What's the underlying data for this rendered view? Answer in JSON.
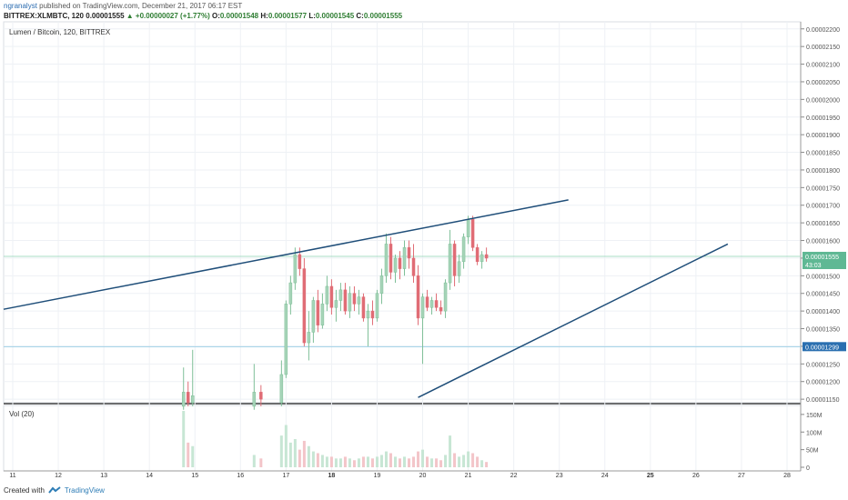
{
  "header": {
    "user": "ngranalyst",
    "published": "published on TradingView.com, December 21, 2017 06:17 EST",
    "symbol": "BITTREX:XLMBTC, 120",
    "last": "0.00001555",
    "change": "▲ +0.00000027 (+1.77%)",
    "o_label": "O:",
    "o": "0.00001548",
    "h_label": "H:",
    "h": "0.00001577",
    "l_label": "L:",
    "l": "0.00001545",
    "c_label": "C:",
    "c": "0.00001555"
  },
  "pane_title": "Lumen / Bitcoin, 120, BITTREX",
  "volume_title": "Vol (20)",
  "footer": {
    "created": "Created with",
    "brand": "TradingView"
  },
  "colors": {
    "up": "#a6d4b8",
    "up_line": "#7fbf98",
    "down": "#e06c75",
    "trend": "#1f4e79",
    "grid": "#eef1f5",
    "hline": "#9fd0e6"
  },
  "chart_data": {
    "type": "candlestick",
    "price_ticks": [
      "0.00001150",
      "0.00001200",
      "0.00001250",
      "0.00001300",
      "0.00001350",
      "0.00001400",
      "0.00001450",
      "0.00001500",
      "0.00001550",
      "0.00001600",
      "0.00001650",
      "0.00001700",
      "0.00001750",
      "0.00001800",
      "0.00001850",
      "0.00001900",
      "0.00001950",
      "0.00002000",
      "0.00002050",
      "0.00002100",
      "0.00002150",
      "0.00002200"
    ],
    "price_range": [
      1.14e-05,
      2.22e-05
    ],
    "last_price_label": "0.00001555",
    "countdown_label": "43:03",
    "marked_level_label": "0.00001299",
    "marked_level": 1.299e-05,
    "last_price": 1.555e-05,
    "x_labels": [
      "11",
      "12",
      "13",
      "14",
      "15",
      "16",
      "17",
      "18",
      "19",
      "20",
      "21",
      "22",
      "23",
      "24",
      "25",
      "26",
      "27",
      "28"
    ],
    "bold_x_labels": [
      "18",
      "25"
    ],
    "day_range": [
      10.8,
      28.3
    ],
    "volume_ticks": [
      "0",
      "50M",
      "100M",
      "150M"
    ],
    "volume_range": [
      0,
      160
    ],
    "trendlines": [
      {
        "p1": [
          10.8,
          1.405e-05
        ],
        "p2": [
          23.2,
          1.715e-05
        ]
      },
      {
        "p1": [
          19.9,
          1.155e-05
        ],
        "p2": [
          26.7,
          1.59e-05
        ]
      }
    ],
    "candles": [
      {
        "t": 14.75,
        "o": 1.13e-05,
        "h": 1.24e-05,
        "l": 1.12e-05,
        "c": 1.17e-05,
        "v": 160
      },
      {
        "t": 14.85,
        "o": 1.17e-05,
        "h": 1.2e-05,
        "l": 1.13e-05,
        "c": 1.14e-05,
        "v": 70
      },
      {
        "t": 14.95,
        "o": 1.14e-05,
        "h": 1.29e-05,
        "l": 1.13e-05,
        "c": 1.16e-05,
        "v": 60
      },
      {
        "t": 16.3,
        "o": 1.13e-05,
        "h": 1.25e-05,
        "l": 1.12e-05,
        "c": 1.17e-05,
        "v": 35
      },
      {
        "t": 16.45,
        "o": 1.17e-05,
        "h": 1.19e-05,
        "l": 1.13e-05,
        "c": 1.15e-05,
        "v": 25
      },
      {
        "t": 16.9,
        "o": 1.14e-05,
        "h": 1.26e-05,
        "l": 1.13e-05,
        "c": 1.22e-05,
        "v": 90
      },
      {
        "t": 17.0,
        "o": 1.22e-05,
        "h": 1.43e-05,
        "l": 1.21e-05,
        "c": 1.42e-05,
        "v": 120
      },
      {
        "t": 17.1,
        "o": 1.42e-05,
        "h": 1.5e-05,
        "l": 1.39e-05,
        "c": 1.48e-05,
        "v": 70
      },
      {
        "t": 17.2,
        "o": 1.48e-05,
        "h": 1.58e-05,
        "l": 1.46e-05,
        "c": 1.56e-05,
        "v": 80
      },
      {
        "t": 17.3,
        "o": 1.56e-05,
        "h": 1.58e-05,
        "l": 1.5e-05,
        "c": 1.52e-05,
        "v": 50
      },
      {
        "t": 17.4,
        "o": 1.52e-05,
        "h": 1.55e-05,
        "l": 1.3e-05,
        "c": 1.31e-05,
        "v": 75
      },
      {
        "t": 17.5,
        "o": 1.31e-05,
        "h": 1.4e-05,
        "l": 1.26e-05,
        "c": 1.34e-05,
        "v": 60
      },
      {
        "t": 17.6,
        "o": 1.34e-05,
        "h": 1.44e-05,
        "l": 1.31e-05,
        "c": 1.43e-05,
        "v": 45
      },
      {
        "t": 17.7,
        "o": 1.43e-05,
        "h": 1.46e-05,
        "l": 1.34e-05,
        "c": 1.36e-05,
        "v": 40
      },
      {
        "t": 17.8,
        "o": 1.36e-05,
        "h": 1.45e-05,
        "l": 1.35e-05,
        "c": 1.42e-05,
        "v": 35
      },
      {
        "t": 17.9,
        "o": 1.42e-05,
        "h": 1.5e-05,
        "l": 1.4e-05,
        "c": 1.47e-05,
        "v": 30
      },
      {
        "t": 18.0,
        "o": 1.47e-05,
        "h": 1.49e-05,
        "l": 1.39e-05,
        "c": 1.41e-05,
        "v": 30
      },
      {
        "t": 18.1,
        "o": 1.41e-05,
        "h": 1.46e-05,
        "l": 1.37e-05,
        "c": 1.43e-05,
        "v": 25
      },
      {
        "t": 18.2,
        "o": 1.43e-05,
        "h": 1.48e-05,
        "l": 1.4e-05,
        "c": 1.46e-05,
        "v": 25
      },
      {
        "t": 18.3,
        "o": 1.46e-05,
        "h": 1.48e-05,
        "l": 1.39e-05,
        "c": 1.4e-05,
        "v": 30
      },
      {
        "t": 18.4,
        "o": 1.4e-05,
        "h": 1.47e-05,
        "l": 1.38e-05,
        "c": 1.45e-05,
        "v": 25
      },
      {
        "t": 18.5,
        "o": 1.45e-05,
        "h": 1.47e-05,
        "l": 1.4e-05,
        "c": 1.42e-05,
        "v": 20
      },
      {
        "t": 18.6,
        "o": 1.42e-05,
        "h": 1.46e-05,
        "l": 1.39e-05,
        "c": 1.44e-05,
        "v": 25
      },
      {
        "t": 18.7,
        "o": 1.44e-05,
        "h": 1.45e-05,
        "l": 1.37e-05,
        "c": 1.38e-05,
        "v": 30
      },
      {
        "t": 18.8,
        "o": 1.38e-05,
        "h": 1.42e-05,
        "l": 1.3e-05,
        "c": 1.4e-05,
        "v": 30
      },
      {
        "t": 18.9,
        "o": 1.4e-05,
        "h": 1.43e-05,
        "l": 1.36e-05,
        "c": 1.38e-05,
        "v": 25
      },
      {
        "t": 19.0,
        "o": 1.38e-05,
        "h": 1.46e-05,
        "l": 1.37e-05,
        "c": 1.45e-05,
        "v": 30
      },
      {
        "t": 19.1,
        "o": 1.45e-05,
        "h": 1.52e-05,
        "l": 1.42e-05,
        "c": 1.5e-05,
        "v": 35
      },
      {
        "t": 19.2,
        "o": 1.5e-05,
        "h": 1.62e-05,
        "l": 1.48e-05,
        "c": 1.59e-05,
        "v": 45
      },
      {
        "t": 19.3,
        "o": 1.59e-05,
        "h": 1.61e-05,
        "l": 1.49e-05,
        "c": 1.51e-05,
        "v": 40
      },
      {
        "t": 19.4,
        "o": 1.51e-05,
        "h": 1.56e-05,
        "l": 1.48e-05,
        "c": 1.55e-05,
        "v": 30
      },
      {
        "t": 19.5,
        "o": 1.55e-05,
        "h": 1.57e-05,
        "l": 1.49e-05,
        "c": 1.52e-05,
        "v": 25
      },
      {
        "t": 19.6,
        "o": 1.52e-05,
        "h": 1.6e-05,
        "l": 1.5e-05,
        "c": 1.58e-05,
        "v": 30
      },
      {
        "t": 19.7,
        "o": 1.58e-05,
        "h": 1.6e-05,
        "l": 1.52e-05,
        "c": 1.55e-05,
        "v": 25
      },
      {
        "t": 19.8,
        "o": 1.55e-05,
        "h": 1.59e-05,
        "l": 1.48e-05,
        "c": 1.5e-05,
        "v": 30
      },
      {
        "t": 19.9,
        "o": 1.5e-05,
        "h": 1.53e-05,
        "l": 1.36e-05,
        "c": 1.38e-05,
        "v": 45
      },
      {
        "t": 20.0,
        "o": 1.38e-05,
        "h": 1.45e-05,
        "l": 1.25e-05,
        "c": 1.44e-05,
        "v": 50
      },
      {
        "t": 20.1,
        "o": 1.44e-05,
        "h": 1.46e-05,
        "l": 1.4e-05,
        "c": 1.41e-05,
        "v": 30
      },
      {
        "t": 20.2,
        "o": 1.41e-05,
        "h": 1.44e-05,
        "l": 1.39e-05,
        "c": 1.43e-05,
        "v": 25
      },
      {
        "t": 20.3,
        "o": 1.43e-05,
        "h": 1.45e-05,
        "l": 1.4e-05,
        "c": 1.41e-05,
        "v": 25
      },
      {
        "t": 20.4,
        "o": 1.41e-05,
        "h": 1.43e-05,
        "l": 1.39e-05,
        "c": 1.4e-05,
        "v": 20
      },
      {
        "t": 20.5,
        "o": 1.4e-05,
        "h": 1.49e-05,
        "l": 1.38e-05,
        "c": 1.48e-05,
        "v": 35
      },
      {
        "t": 20.6,
        "o": 1.48e-05,
        "h": 1.63e-05,
        "l": 1.46e-05,
        "c": 1.59e-05,
        "v": 90
      },
      {
        "t": 20.7,
        "o": 1.59e-05,
        "h": 1.6e-05,
        "l": 1.47e-05,
        "c": 1.5e-05,
        "v": 40
      },
      {
        "t": 20.8,
        "o": 1.5e-05,
        "h": 1.56e-05,
        "l": 1.48e-05,
        "c": 1.54e-05,
        "v": 30
      },
      {
        "t": 20.9,
        "o": 1.54e-05,
        "h": 1.62e-05,
        "l": 1.52e-05,
        "c": 1.61e-05,
        "v": 35
      },
      {
        "t": 21.0,
        "o": 1.61e-05,
        "h": 1.67e-05,
        "l": 1.59e-05,
        "c": 1.66e-05,
        "v": 45
      },
      {
        "t": 21.1,
        "o": 1.66e-05,
        "h": 1.67e-05,
        "l": 1.57e-05,
        "c": 1.58e-05,
        "v": 40
      },
      {
        "t": 21.2,
        "o": 1.58e-05,
        "h": 1.59e-05,
        "l": 1.53e-05,
        "c": 1.54e-05,
        "v": 30
      },
      {
        "t": 21.3,
        "o": 1.54e-05,
        "h": 1.57e-05,
        "l": 1.52e-05,
        "c": 1.56e-05,
        "v": 20
      },
      {
        "t": 21.4,
        "o": 1.56e-05,
        "h": 1.58e-05,
        "l": 1.54e-05,
        "c": 1.55e-05,
        "v": 15
      }
    ]
  }
}
